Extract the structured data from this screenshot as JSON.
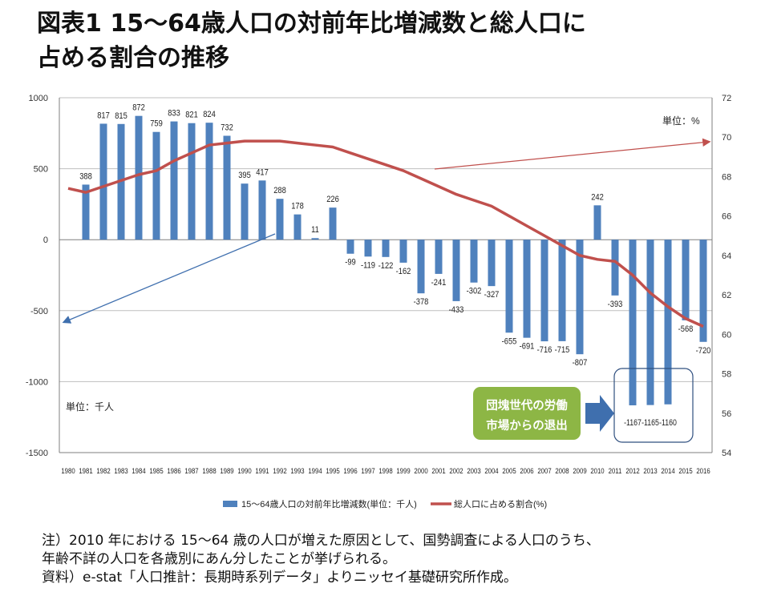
{
  "title": {
    "line1": "図表1 15～64歳人口の対前年比増減数と総人口に",
    "line2": "占める割合の推移"
  },
  "notes": {
    "note": "注）2010 年における 15～64 歳の人口が増えた原因として、国勢調査による人口のうち、",
    "note_cont": "年齢不詳の人口を各歳別にあん分したことが挙げられる。",
    "source": "資料）e-stat「人口推計：長期時系列データ」よりニッセイ基礎研究所作成。"
  },
  "chart_data": {
    "type": "bar",
    "categories": [
      "1980",
      "1981",
      "1982",
      "1983",
      "1984",
      "1985",
      "1986",
      "1987",
      "1988",
      "1989",
      "1990",
      "1991",
      "1992",
      "1993",
      "1994",
      "1995",
      "1996",
      "1997",
      "1998",
      "1999",
      "2000",
      "2001",
      "2002",
      "2003",
      "2004",
      "2005",
      "2006",
      "2007",
      "2008",
      "2009",
      "2010",
      "2011",
      "2012",
      "2013",
      "2014",
      "2015",
      "2016"
    ],
    "series": [
      {
        "name": "15～64歳人口の対前年比増減数(単位：千人)",
        "type": "bar",
        "axis": "left",
        "color": "#4f81bd",
        "values": [
          null,
          388,
          817,
          815,
          872,
          759,
          833,
          821,
          824,
          732,
          395,
          417,
          288,
          178,
          11,
          226,
          -99,
          -119,
          -122,
          -162,
          -378,
          -241,
          -433,
          -302,
          -327,
          -655,
          -691,
          -716,
          -715,
          -807,
          242,
          -393,
          -1167,
          -1165,
          -1160,
          -568,
          -720
        ]
      },
      {
        "name": "総人口に占める割合(%)",
        "type": "line",
        "axis": "right",
        "color": "#c0504d",
        "values": [
          67.4,
          67.2,
          67.5,
          67.8,
          68.1,
          68.3,
          68.8,
          69.2,
          69.6,
          69.7,
          69.8,
          69.8,
          69.8,
          69.7,
          69.6,
          69.5,
          69.2,
          68.9,
          68.6,
          68.3,
          67.9,
          67.5,
          67.1,
          66.8,
          66.5,
          66.0,
          65.5,
          65.0,
          64.5,
          64.0,
          63.8,
          63.7,
          63.0,
          62.1,
          61.4,
          60.8,
          60.4
        ]
      }
    ],
    "y_left": {
      "ylim": [
        -1500,
        1000
      ],
      "ticks": [
        "1000",
        "500",
        "0",
        "-500",
        "-1000",
        "-1500"
      ],
      "unit": "単位：千人"
    },
    "y_right": {
      "ylim": [
        54,
        72
      ],
      "ticks": [
        "72",
        "70",
        "68",
        "66",
        "64",
        "62",
        "60",
        "58",
        "56",
        "54"
      ],
      "unit": "単位：%"
    },
    "legend": "bottom",
    "grid": "horizontal",
    "labels": {
      "value_1167": "-1167",
      "value_1165": "-1165",
      "value_1160": "-1160"
    },
    "annotation": {
      "line1": "団塊世代の労働",
      "line2": "市場からの退出",
      "fill": "#8db645",
      "arrow_color": "#3f6fae"
    }
  }
}
